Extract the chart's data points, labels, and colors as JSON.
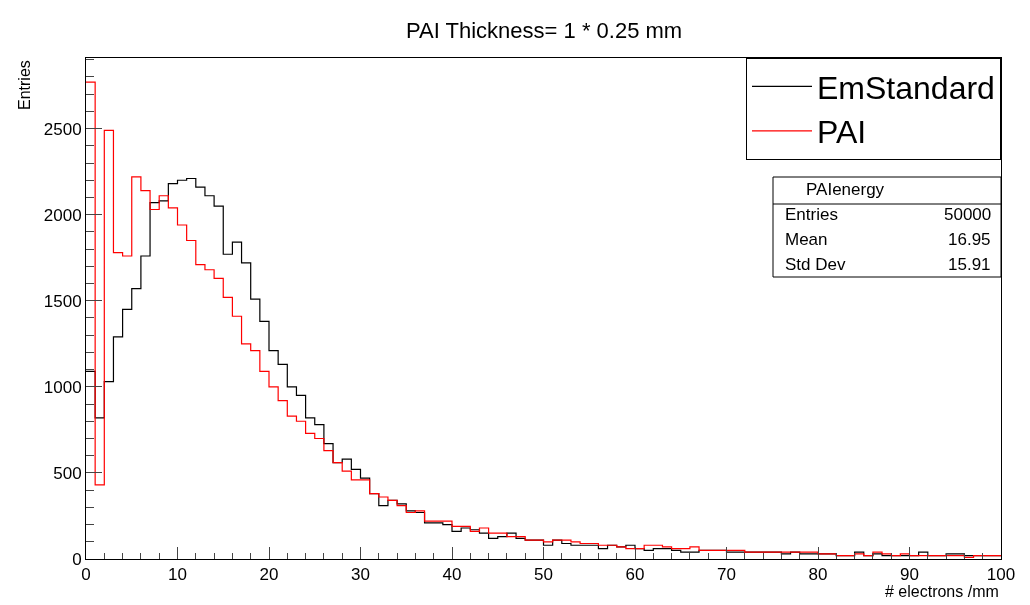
{
  "chart_data": {
    "type": "histogram",
    "title": "PAI Thickness= 1 * 0.25 mm",
    "xlabel": "# electrons /mm",
    "ylabel": "Entries",
    "bins": [
      0,
      1,
      2,
      3,
      4,
      5,
      6,
      7,
      8,
      9,
      10,
      11,
      12,
      13,
      14,
      15,
      16,
      17,
      18,
      19,
      20,
      21,
      22,
      23,
      24,
      25,
      26,
      27,
      28,
      29,
      30,
      31,
      32,
      33,
      34,
      35,
      36,
      37,
      38,
      39,
      40,
      41,
      42,
      43,
      44,
      45,
      46,
      47,
      48,
      49,
      50,
      51,
      52,
      53,
      54,
      55,
      56,
      57,
      58,
      59,
      60,
      61,
      62,
      63,
      64,
      65,
      66,
      67,
      68,
      69,
      70,
      71,
      72,
      73,
      74,
      75,
      76,
      77,
      78,
      79,
      80,
      81,
      82,
      83,
      84,
      85,
      86,
      87,
      88,
      89,
      90,
      91,
      92,
      93,
      94,
      95,
      96,
      97,
      98,
      99,
      100
    ],
    "series": [
      {
        "name": "EmStandard",
        "color": "#000000",
        "values": [
          1090,
          820,
          1030,
          1290,
          1450,
          1570,
          1760,
          2070,
          2080,
          2180,
          2200,
          2210,
          2160,
          2110,
          2050,
          1770,
          1840,
          1720,
          1510,
          1380,
          1210,
          1130,
          1000,
          950,
          820,
          780,
          670,
          560,
          580,
          520,
          470,
          380,
          310,
          340,
          320,
          280,
          270,
          210,
          210,
          200,
          160,
          180,
          170,
          150,
          120,
          130,
          150,
          120,
          110,
          110,
          80,
          110,
          90,
          80,
          80,
          80,
          60,
          80,
          70,
          80,
          60,
          50,
          60,
          60,
          50,
          40,
          40,
          50,
          50,
          50,
          40,
          40,
          40,
          40,
          40,
          40,
          30,
          40,
          30,
          30,
          30,
          30,
          20,
          20,
          40,
          20,
          30,
          20,
          20,
          20,
          20,
          40,
          20,
          20,
          30,
          30,
          20,
          20,
          20,
          20
        ]
      },
      {
        "name": "PAI",
        "color": "#ff0000",
        "values": [
          2770,
          430,
          2490,
          1780,
          1760,
          2220,
          2140,
          2030,
          2110,
          2040,
          1940,
          1850,
          1710,
          1680,
          1630,
          1520,
          1410,
          1250,
          1210,
          1090,
          1000,
          920,
          830,
          800,
          730,
          700,
          630,
          560,
          510,
          460,
          460,
          380,
          360,
          340,
          310,
          270,
          280,
          220,
          220,
          220,
          190,
          190,
          160,
          180,
          150,
          150,
          130,
          130,
          110,
          110,
          100,
          110,
          110,
          100,
          90,
          90,
          80,
          80,
          70,
          60,
          60,
          80,
          80,
          70,
          60,
          60,
          70,
          50,
          50,
          50,
          50,
          50,
          40,
          40,
          40,
          40,
          40,
          40,
          40,
          40,
          30,
          30,
          20,
          20,
          30,
          20,
          40,
          30,
          20,
          30,
          20,
          20,
          20,
          20,
          20,
          20,
          10,
          20,
          20,
          20
        ]
      }
    ],
    "xlim": [
      0,
      100
    ],
    "ylim": [
      0,
      2910
    ],
    "xticks": [
      0,
      10,
      20,
      30,
      40,
      50,
      60,
      70,
      80,
      90,
      100
    ],
    "yticks": [
      0,
      500,
      1000,
      1500,
      2000,
      2500
    ],
    "legend": "top right",
    "line_style": "solid",
    "annotations": [
      "PAIenergy",
      "Entries",
      "50000",
      "Mean",
      "16.95",
      "Std Dev",
      "15.91"
    ]
  }
}
